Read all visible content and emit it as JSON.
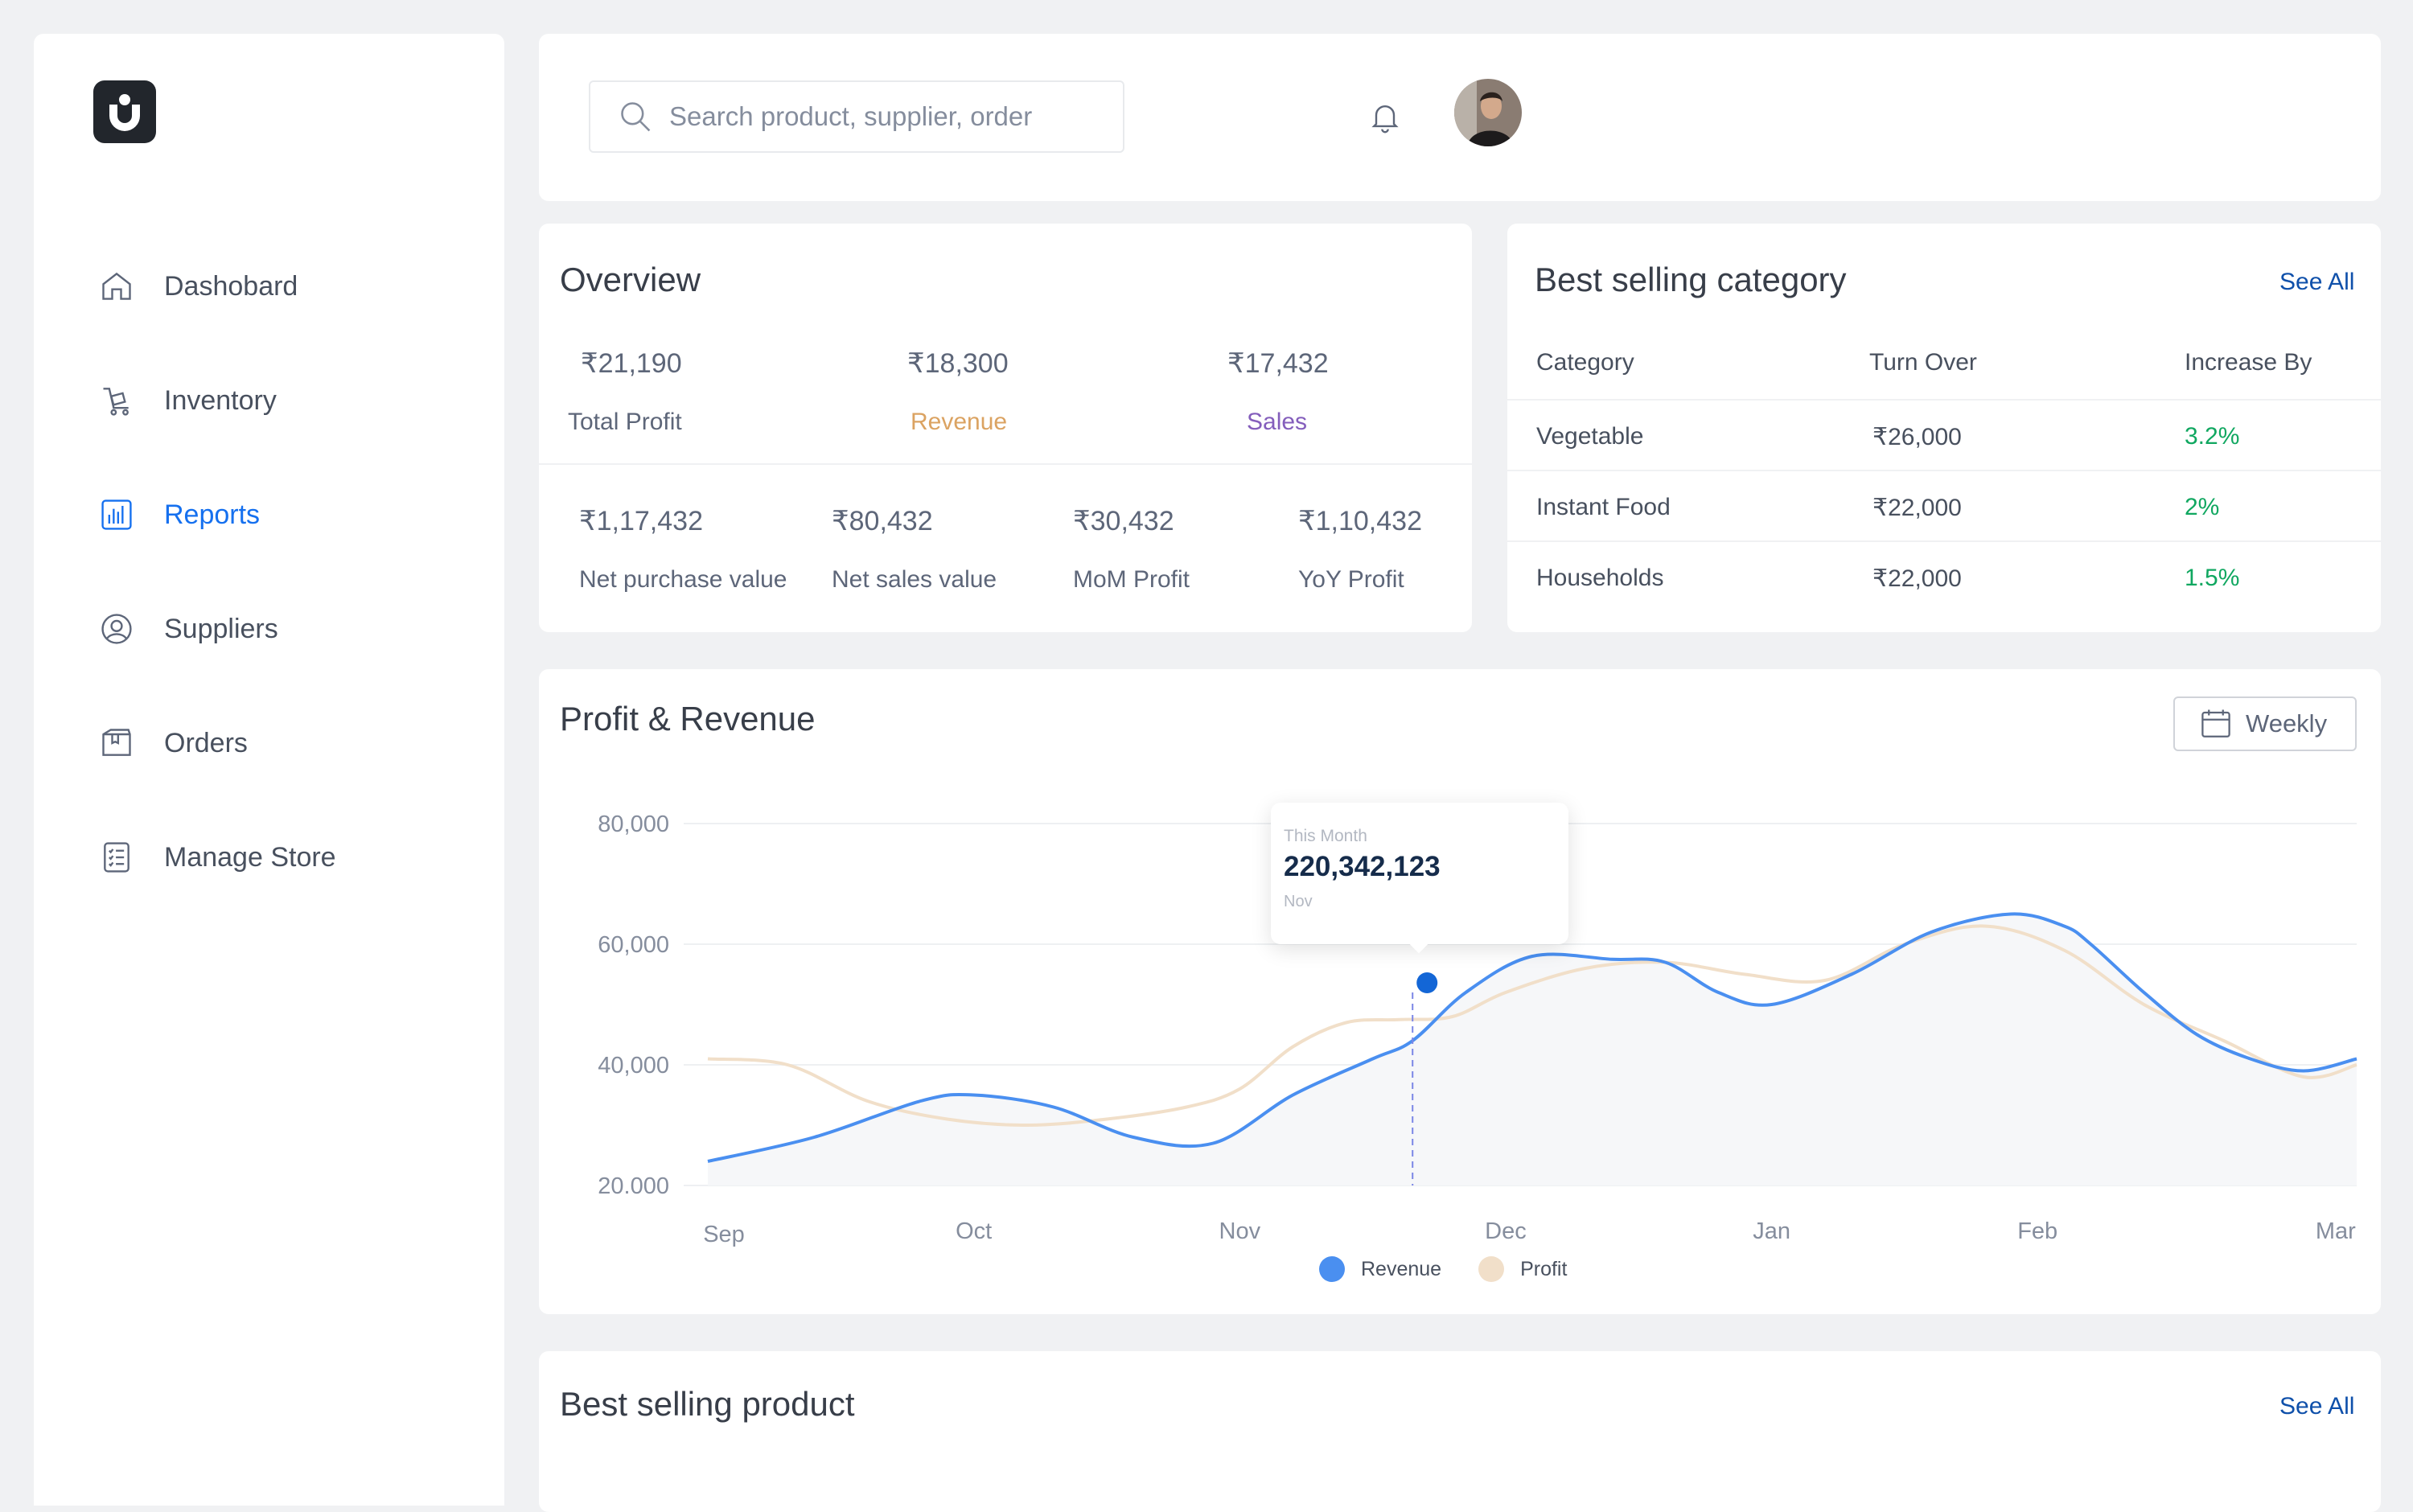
{
  "sidebar": {
    "items": [
      {
        "label": "Dashobard",
        "icon": "home-icon"
      },
      {
        "label": "Inventory",
        "icon": "trolley-icon"
      },
      {
        "label": "Reports",
        "icon": "bar-chart-icon",
        "active": true
      },
      {
        "label": "Suppliers",
        "icon": "user-circle-icon"
      },
      {
        "label": "Orders",
        "icon": "package-icon"
      },
      {
        "label": "Manage Store",
        "icon": "checklist-icon"
      }
    ]
  },
  "header": {
    "search_placeholder": "Search product, supplier, order"
  },
  "overview": {
    "title": "Overview",
    "top": [
      {
        "value": "₹21,190",
        "label": "Total Profit",
        "color": "#5d6679"
      },
      {
        "value": "₹18,300",
        "label": "Revenue",
        "color": "#dba362"
      },
      {
        "value": "₹17,432",
        "label": "Sales",
        "color": "#845ebc"
      }
    ],
    "bottom": [
      {
        "value": "₹1,17,432",
        "label": "Net purchase value"
      },
      {
        "value": "₹80,432",
        "label": "Net sales value"
      },
      {
        "value": "₹30,432",
        "label": "MoM Profit"
      },
      {
        "value": "₹1,10,432",
        "label": "YoY Profit"
      }
    ]
  },
  "category": {
    "title": "Best selling category",
    "see_all": "See All",
    "columns": [
      "Category",
      "Turn Over",
      "Increase By"
    ],
    "rows": [
      {
        "category": "Vegetable",
        "turnover": "₹26,000",
        "increase": "3.2%"
      },
      {
        "category": "Instant Food",
        "turnover": "₹22,000",
        "increase": "2%"
      },
      {
        "category": "Households",
        "turnover": "₹22,000",
        "increase": "1.5%"
      }
    ]
  },
  "chart_section": {
    "title": "Profit  & Revenue",
    "range_button": "Weekly",
    "tooltip": {
      "label": "This Month",
      "value": "220,342,123",
      "month": "Nov"
    }
  },
  "chart_data": {
    "type": "line",
    "x": [
      "Sep",
      "Oct",
      "Nov",
      "Dec",
      "Jan",
      "Feb",
      "Mar"
    ],
    "y_ticks": [
      "80,000",
      "60,000",
      "40,000",
      "20.000"
    ],
    "ylim": [
      20000,
      80000
    ],
    "grid": true,
    "legend": "bottom-center",
    "series": [
      {
        "name": "Revenue",
        "color": "#4a8ff0",
        "points": [
          [
            0,
            24000
          ],
          [
            0.4,
            28000
          ],
          [
            0.8,
            34000
          ],
          [
            1,
            35000
          ],
          [
            1.3,
            33000
          ],
          [
            1.6,
            28000
          ],
          [
            1.9,
            27000
          ],
          [
            2.2,
            35000
          ],
          [
            2.5,
            41000
          ],
          [
            2.65,
            44000
          ],
          [
            2.85,
            52000
          ],
          [
            3.1,
            58000
          ],
          [
            3.4,
            57500
          ],
          [
            3.6,
            57000
          ],
          [
            3.8,
            52000
          ],
          [
            4,
            50000
          ],
          [
            4.3,
            55000
          ],
          [
            4.6,
            62000
          ],
          [
            4.9,
            65000
          ],
          [
            5.1,
            63000
          ],
          [
            5.2,
            60000
          ],
          [
            5.4,
            52000
          ],
          [
            5.6,
            45000
          ],
          [
            5.8,
            41000
          ],
          [
            6,
            39000
          ],
          [
            6.2,
            41000
          ]
        ]
      },
      {
        "name": "Profit",
        "color": "#f1dfc9",
        "points": [
          [
            0,
            41000
          ],
          [
            0.3,
            40000
          ],
          [
            0.6,
            34000
          ],
          [
            0.9,
            31000
          ],
          [
            1.2,
            30000
          ],
          [
            1.5,
            31000
          ],
          [
            1.8,
            33000
          ],
          [
            2,
            36000
          ],
          [
            2.2,
            43000
          ],
          [
            2.4,
            47000
          ],
          [
            2.6,
            47500
          ],
          [
            2.8,
            48000
          ],
          [
            3,
            52000
          ],
          [
            3.3,
            56000
          ],
          [
            3.6,
            57000
          ],
          [
            3.9,
            55000
          ],
          [
            4.2,
            54000
          ],
          [
            4.5,
            60000
          ],
          [
            4.8,
            63000
          ],
          [
            5.1,
            59000
          ],
          [
            5.4,
            50000
          ],
          [
            5.7,
            44000
          ],
          [
            6,
            38000
          ],
          [
            6.2,
            40000
          ]
        ]
      }
    ],
    "highlight": {
      "x": 2.65,
      "y": 52000
    }
  },
  "legend": {
    "revenue": "Revenue",
    "profit": "Profit"
  },
  "product": {
    "title": "Best selling product",
    "see_all": "See All"
  }
}
